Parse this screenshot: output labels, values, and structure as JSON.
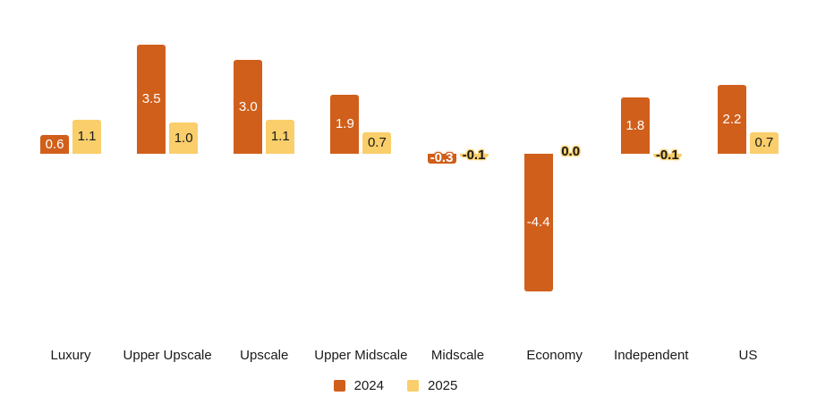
{
  "chart_data": {
    "type": "bar",
    "title": "",
    "xlabel": "",
    "ylabel": "",
    "categories": [
      "Luxury",
      "Upper Upscale",
      "Upscale",
      "Upper Midscale",
      "Midscale",
      "Economy",
      "Independent",
      "US"
    ],
    "series": [
      {
        "name": "2024",
        "color": "#d05f1b",
        "label_text_color": "#ffffff",
        "values": [
          0.6,
          3.5,
          3.0,
          1.9,
          -0.3,
          -4.4,
          1.8,
          2.2
        ]
      },
      {
        "name": "2025",
        "color": "#f9ce6b",
        "label_text_color": "#1a1a1a",
        "values": [
          1.1,
          1.0,
          1.1,
          0.7,
          -0.1,
          0.0,
          -0.1,
          0.7
        ]
      }
    ],
    "value_labels": [
      [
        "0.6",
        "3.5",
        "3.0",
        "1.9",
        "-0.3",
        "-4.4",
        "1.8",
        "2.2"
      ],
      [
        "1.1",
        "1.0",
        "1.1",
        "0.7",
        "-0.1",
        "0.0",
        "-0.1",
        "0.7"
      ]
    ],
    "ylim": [
      -4.6,
      3.6
    ],
    "grid": false,
    "axis_lines": false,
    "legend_position": "bottom-center"
  },
  "legend": {
    "items": [
      {
        "label": "2024"
      },
      {
        "label": "2025"
      }
    ]
  }
}
